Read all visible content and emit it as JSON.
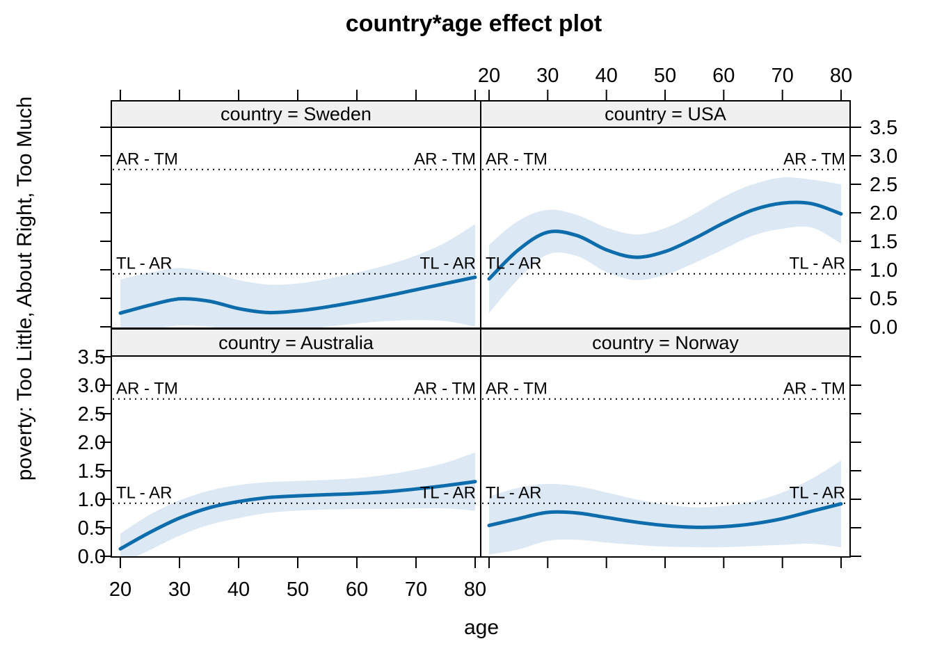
{
  "title": "country*age effect plot",
  "x_axis_label": "age",
  "y_axis_label": "poverty: Too Little, About Right, Too Much",
  "colors": {
    "line": "#0d6cab",
    "band": "#dce8f3",
    "strip_background": "#f0f0f0",
    "border": "#000000",
    "background": "#ffffff"
  },
  "axes": {
    "x_tick_values": [
      20,
      30,
      40,
      50,
      60,
      70,
      80
    ],
    "x_tick_labels": [
      "20",
      "30",
      "40",
      "50",
      "60",
      "70",
      "80"
    ],
    "y_tick_values": [
      0,
      0.5,
      1,
      1.5,
      2,
      2.5,
      3,
      3.5
    ],
    "y_tick_labels": [
      "0.0",
      "0.5",
      "1.0",
      "1.5",
      "2.0",
      "2.5",
      "3.0",
      "3.5"
    ]
  },
  "chart_data": {
    "type": "line",
    "title": "country*age effect plot",
    "xlabel": "age",
    "ylabel": "poverty: Too Little, About Right, Too Much",
    "x": [
      20,
      25,
      30,
      35,
      40,
      45,
      50,
      55,
      60,
      65,
      70,
      75,
      80
    ],
    "xlim": [
      20,
      80
    ],
    "ylim": [
      0,
      3.5
    ],
    "grid": false,
    "reference_lines": [
      {
        "label": "AR - TM",
        "value": 2.76
      },
      {
        "label": "TL - AR",
        "value": 0.93
      }
    ],
    "panels": [
      {
        "name": "sweden",
        "strip_label": "country = Sweden",
        "fit": [
          0.24,
          0.38,
          0.49,
          0.45,
          0.32,
          0.25,
          0.28,
          0.35,
          0.44,
          0.54,
          0.65,
          0.76,
          0.87
        ],
        "upper": [
          0.83,
          0.95,
          1.03,
          0.96,
          0.82,
          0.74,
          0.76,
          0.84,
          0.95,
          1.08,
          1.25,
          1.48,
          1.8
        ],
        "lower": [
          -0.1,
          -0.05,
          0.02,
          0.0,
          -0.05,
          -0.08,
          -0.05,
          0.0,
          0.06,
          0.1,
          0.12,
          0.1,
          0.0
        ]
      },
      {
        "name": "usa",
        "strip_label": "country = USA",
        "fit": [
          0.84,
          1.35,
          1.66,
          1.6,
          1.35,
          1.22,
          1.32,
          1.55,
          1.82,
          2.05,
          2.17,
          2.16,
          1.98
        ],
        "upper": [
          1.44,
          1.86,
          2.05,
          1.96,
          1.74,
          1.62,
          1.73,
          1.98,
          2.28,
          2.5,
          2.62,
          2.58,
          2.5
        ],
        "lower": [
          0.24,
          0.84,
          1.27,
          1.24,
          0.96,
          0.82,
          0.91,
          1.12,
          1.36,
          1.6,
          1.72,
          1.74,
          1.46
        ]
      },
      {
        "name": "australia",
        "strip_label": "country = Australia",
        "fit": [
          0.13,
          0.42,
          0.67,
          0.85,
          0.96,
          1.03,
          1.06,
          1.08,
          1.1,
          1.13,
          1.18,
          1.24,
          1.31
        ],
        "upper": [
          0.4,
          0.73,
          0.98,
          1.15,
          1.25,
          1.3,
          1.32,
          1.34,
          1.37,
          1.43,
          1.52,
          1.64,
          1.82
        ],
        "lower": [
          -0.14,
          0.11,
          0.36,
          0.55,
          0.67,
          0.76,
          0.8,
          0.82,
          0.83,
          0.83,
          0.84,
          0.84,
          0.8
        ]
      },
      {
        "name": "norway",
        "strip_label": "country = Norway",
        "fit": [
          0.54,
          0.66,
          0.77,
          0.76,
          0.68,
          0.6,
          0.54,
          0.51,
          0.52,
          0.57,
          0.66,
          0.79,
          0.92
        ],
        "upper": [
          1.05,
          1.2,
          1.27,
          1.23,
          1.12,
          1.0,
          0.91,
          0.86,
          0.88,
          0.96,
          1.12,
          1.36,
          1.68
        ],
        "lower": [
          0.03,
          0.12,
          0.27,
          0.29,
          0.24,
          0.2,
          0.17,
          0.16,
          0.16,
          0.18,
          0.2,
          0.22,
          0.16
        ]
      }
    ]
  }
}
